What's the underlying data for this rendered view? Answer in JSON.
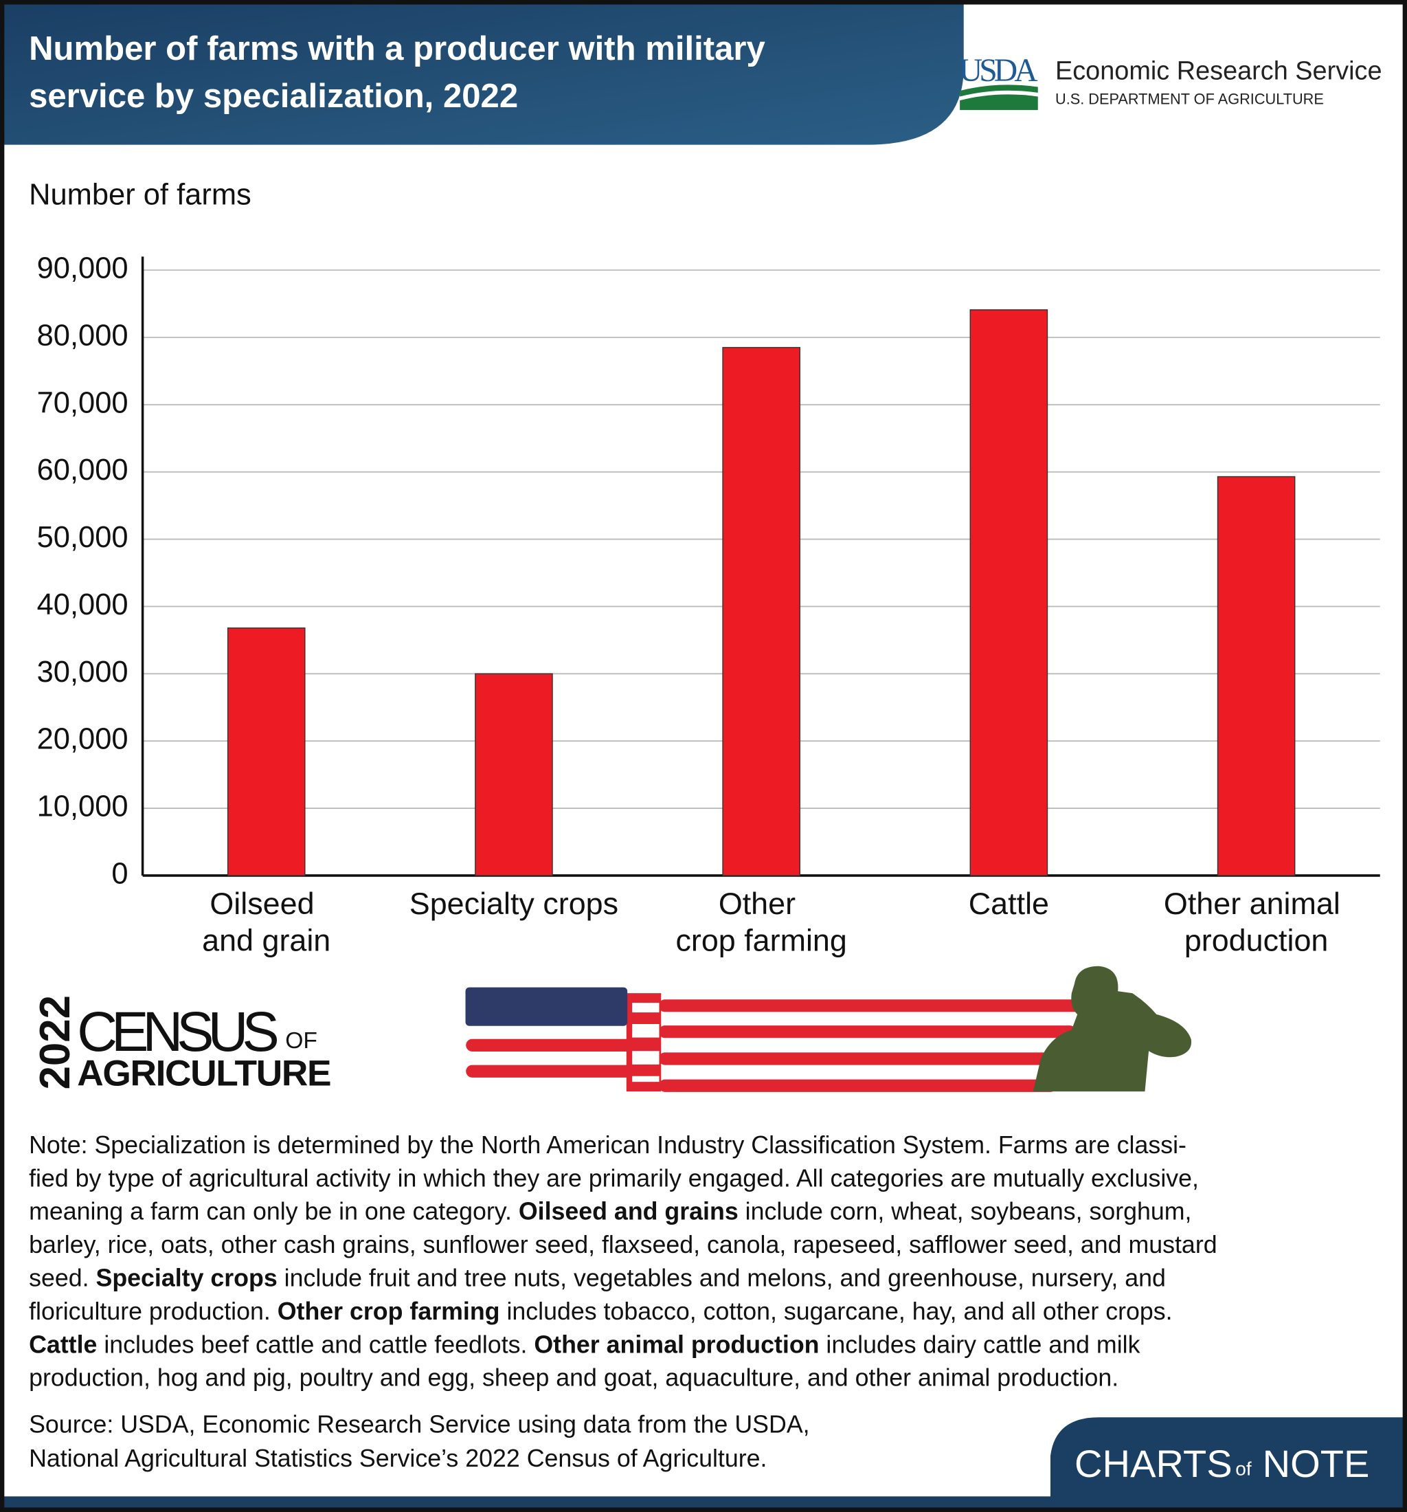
{
  "header": {
    "title_lines": [
      "Number of farms with a producer with military",
      "service by specialization, 2022"
    ],
    "logo_mark": "USDA",
    "agency": "Economic Research Service",
    "department": "U.S. DEPARTMENT OF AGRICULTURE"
  },
  "chart_data": {
    "type": "bar",
    "y_label": "Number of farms",
    "categories": [
      "Oilseed and grain",
      "Specialty crops",
      "Other crop farming",
      "Cattle",
      "Other animal production"
    ],
    "values": [
      36800,
      30000,
      78500,
      84100,
      59300
    ],
    "color": "#ed1c24",
    "ylim": [
      0,
      90000
    ],
    "yticks": [
      0,
      {
        "value": 10000,
        "label": "10,000"
      },
      {
        "value": 20000,
        "label": "20,000"
      },
      {
        "value": 30000,
        "label": "30,000"
      },
      {
        "value": 40000,
        "label": "40,000"
      },
      {
        "value": 50000,
        "label": "50,000"
      },
      {
        "value": 60000,
        "label": "60,000"
      },
      {
        "value": 70000,
        "label": "70,000"
      },
      {
        "value": 80000,
        "label": "80,000"
      },
      {
        "value": 90000,
        "label": "90,000"
      }
    ],
    "grid": true
  },
  "census_logo": {
    "year": "2022",
    "word": "CENSUS",
    "of": "OF",
    "subject": "AGRICULTURE"
  },
  "note": [
    [
      "Note: Specialization is determined by the North American Industry Classification System. Farms are classi-"
    ],
    [
      "fied by type of agricultural activity in which they are primarily engaged. All categories are mutually exclusive,"
    ],
    [
      "meaning a farm can only be in one category. ",
      {
        "text": "Oilseed and grains",
        "bold": true
      },
      " include corn, wheat, soybeans, sorghum,"
    ],
    [
      "barley, rice, oats, other cash grains, sunflower seed, flaxseed, canola, rapeseed, safflower seed, and mustard"
    ],
    [
      "seed. ",
      {
        "text": "Specialty crops",
        "bold": true
      },
      " include fruit and tree nuts, vegetables and melons, and greenhouse, nursery, and"
    ],
    [
      "floriculture production. ",
      {
        "text": "Other crop farming",
        "bold": true
      },
      " includes tobacco, cotton, sugarcane, hay, and all other crops."
    ],
    [
      {
        "text": "Cattle",
        "bold": true
      },
      " includes beef cattle and cattle feedlots. ",
      {
        "text": "Other animal production",
        "bold": true
      },
      " includes dairy cattle and milk"
    ],
    [
      "production, hog and pig, poultry and egg, sheep and goat, aquaculture, and other animal production."
    ]
  ],
  "source": [
    "Source: USDA, Economic Research Service using data from the USDA,",
    "National Agricultural Statistics Service’s 2022 Census of Agriculture."
  ],
  "footer_brand": {
    "first": "CHARTS",
    "middle": "of",
    "last": "NOTE"
  }
}
